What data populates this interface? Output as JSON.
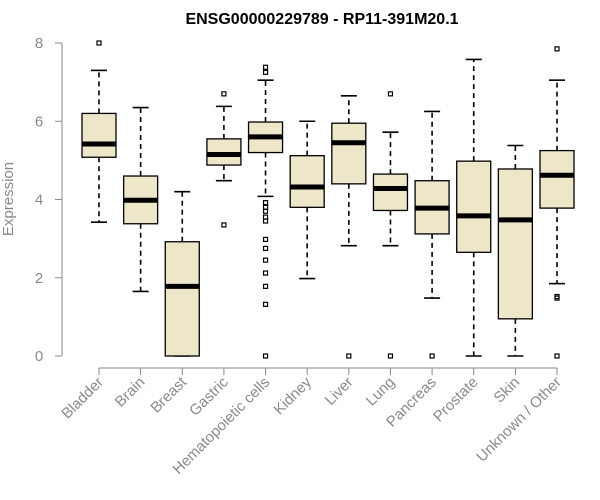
{
  "chart_data": {
    "type": "boxplot",
    "title": "ENSG00000229789 - RP11-391M20.1",
    "xlabel": "",
    "ylabel": "Expression",
    "ylim": [
      0,
      8
    ],
    "yticks": [
      0,
      2,
      4,
      6,
      8
    ],
    "box_color": "#ede6c8",
    "categories": [
      "Bladder",
      "Brain",
      "Breast",
      "Gastric",
      "Hematopoietic cells",
      "Kidney",
      "Liver",
      "Lung",
      "Pancreas",
      "Prostate",
      "Skin",
      "Unknown / Other"
    ],
    "boxes": [
      {
        "name": "Bladder",
        "whisker_low": 3.42,
        "q1": 5.08,
        "median": 5.42,
        "q3": 6.2,
        "whisker_high": 7.3,
        "outliers": [
          8.0
        ]
      },
      {
        "name": "Brain",
        "whisker_low": 1.65,
        "q1": 3.38,
        "median": 3.98,
        "q3": 4.6,
        "whisker_high": 6.35,
        "outliers": []
      },
      {
        "name": "Breast",
        "whisker_low": 0.0,
        "q1": 0.0,
        "median": 1.78,
        "q3": 2.92,
        "whisker_high": 4.2,
        "outliers": []
      },
      {
        "name": "Gastric",
        "whisker_low": 4.48,
        "q1": 4.88,
        "median": 5.15,
        "q3": 5.55,
        "whisker_high": 6.38,
        "outliers": [
          6.7,
          3.35
        ]
      },
      {
        "name": "Hematopoietic cells",
        "whisker_low": 4.08,
        "q1": 5.2,
        "median": 5.6,
        "q3": 5.98,
        "whisker_high": 7.05,
        "outliers": [
          7.38,
          7.25,
          3.92,
          3.8,
          3.7,
          3.55,
          3.45,
          2.98,
          2.75,
          2.45,
          2.12,
          1.78,
          1.32,
          0.0
        ]
      },
      {
        "name": "Kidney",
        "whisker_low": 1.98,
        "q1": 3.8,
        "median": 4.32,
        "q3": 5.12,
        "whisker_high": 6.0,
        "outliers": []
      },
      {
        "name": "Liver",
        "whisker_low": 2.82,
        "q1": 4.4,
        "median": 5.45,
        "q3": 5.95,
        "whisker_high": 6.65,
        "outliers": [
          0.0
        ]
      },
      {
        "name": "Lung",
        "whisker_low": 2.82,
        "q1": 3.72,
        "median": 4.28,
        "q3": 4.65,
        "whisker_high": 5.72,
        "outliers": [
          6.7,
          0.0
        ]
      },
      {
        "name": "Pancreas",
        "whisker_low": 1.48,
        "q1": 3.12,
        "median": 3.78,
        "q3": 4.48,
        "whisker_high": 6.25,
        "outliers": [
          0.0
        ]
      },
      {
        "name": "Prostate",
        "whisker_low": 0.0,
        "q1": 2.65,
        "median": 3.58,
        "q3": 4.98,
        "whisker_high": 7.58,
        "outliers": []
      },
      {
        "name": "Skin",
        "whisker_low": 0.0,
        "q1": 0.95,
        "median": 3.48,
        "q3": 4.78,
        "whisker_high": 5.38,
        "outliers": []
      },
      {
        "name": "Unknown / Other",
        "whisker_low": 1.85,
        "q1": 3.78,
        "median": 4.62,
        "q3": 5.25,
        "whisker_high": 7.05,
        "outliers": [
          7.85,
          1.52,
          1.48,
          0.0
        ]
      }
    ]
  }
}
